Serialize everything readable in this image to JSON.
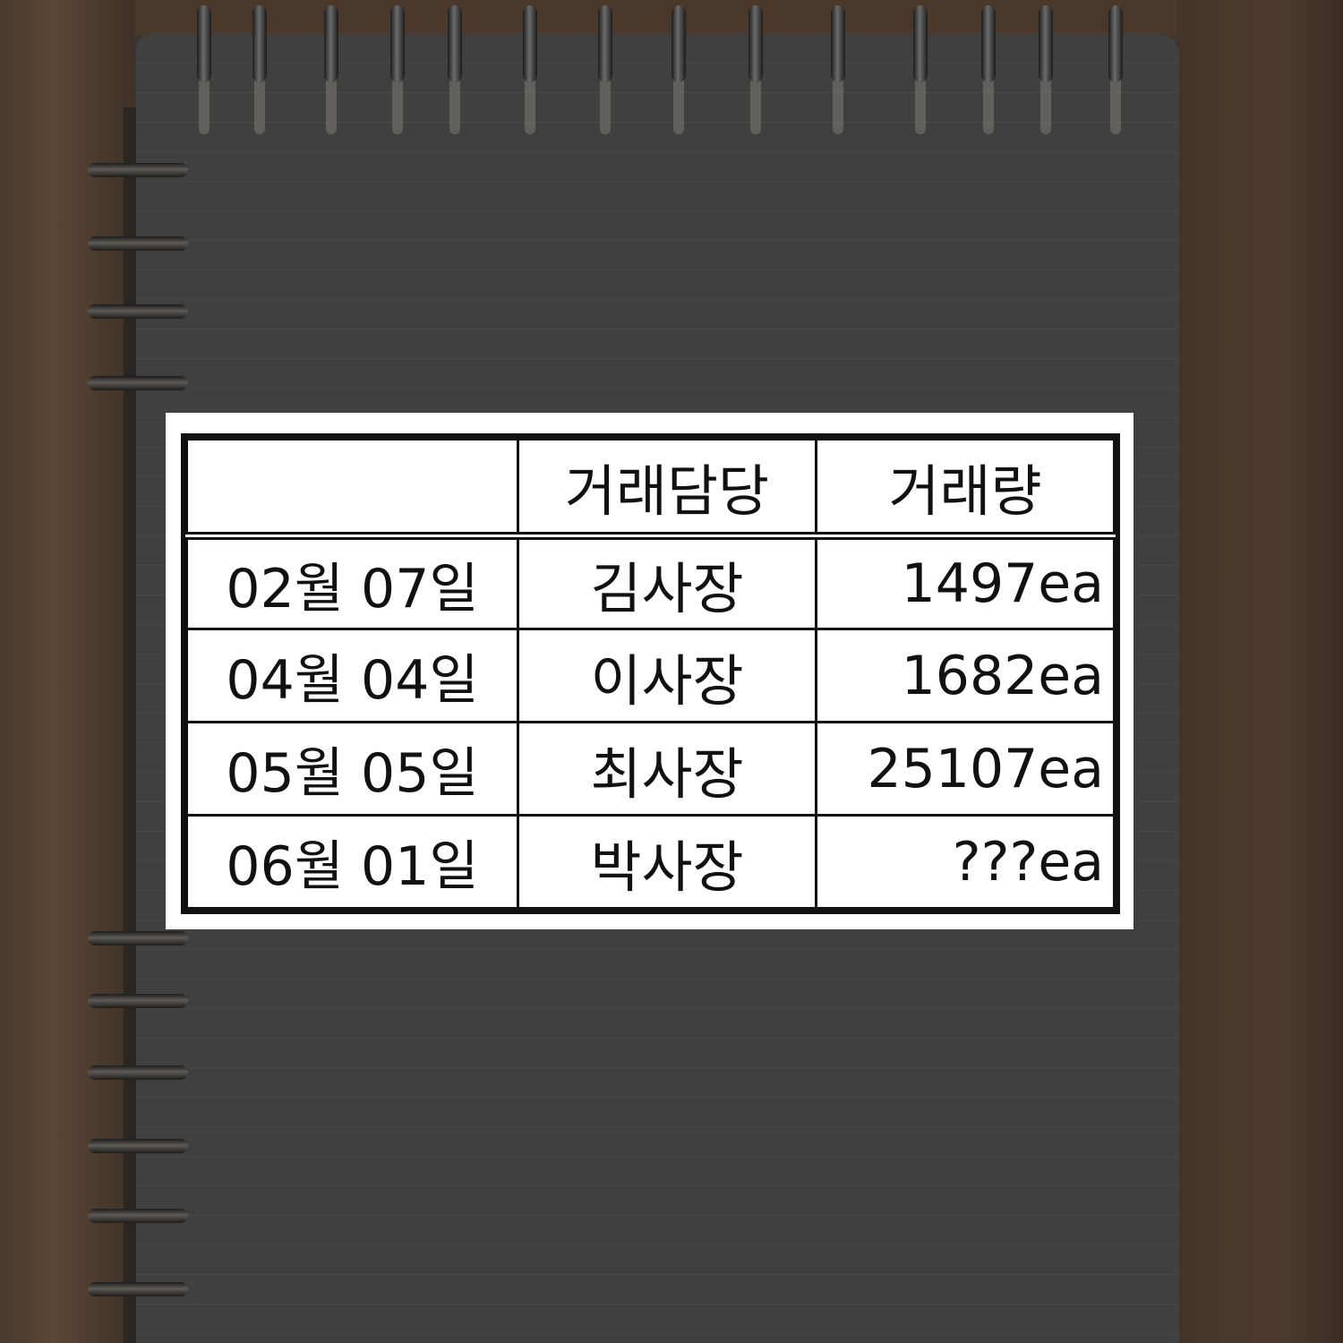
{
  "table": {
    "headers": [
      "",
      "거래담당",
      "거래량"
    ],
    "rows": [
      {
        "date": "02월 07일",
        "manager": "김사장",
        "volume": "1497ea"
      },
      {
        "date": "04월 04일",
        "manager": "이사장",
        "volume": "1682ea"
      },
      {
        "date": "05월 05일",
        "manager": "최사장",
        "volume": "25107ea"
      },
      {
        "date": "06월 01일",
        "manager": "박사장",
        "volume": "???ea"
      }
    ]
  }
}
